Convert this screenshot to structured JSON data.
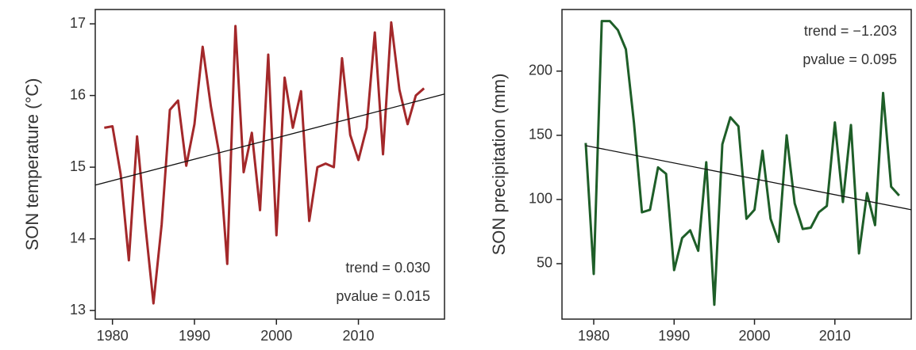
{
  "chart_data": [
    {
      "type": "line",
      "ylabel": "SON temperature (°C)",
      "annotations": [
        "trend = 0.030",
        "pvalue = 0.015"
      ],
      "annotation_corner": "bottom-right",
      "x": [
        1979,
        1980,
        1981,
        1982,
        1983,
        1984,
        1985,
        1986,
        1987,
        1988,
        1989,
        1990,
        1991,
        1992,
        1993,
        1994,
        1995,
        1996,
        1997,
        1998,
        1999,
        2000,
        2001,
        2002,
        2003,
        2004,
        2005,
        2006,
        2007,
        2008,
        2009,
        2010,
        2011,
        2012,
        2013,
        2014,
        2015,
        2016,
        2017,
        2018
      ],
      "values": [
        15.55,
        15.57,
        14.9,
        13.7,
        15.43,
        14.2,
        13.1,
        14.2,
        15.8,
        15.93,
        15.02,
        15.6,
        16.68,
        15.85,
        15.2,
        13.65,
        16.97,
        14.93,
        15.48,
        14.4,
        16.57,
        14.05,
        16.25,
        15.55,
        16.06,
        14.25,
        15.0,
        15.05,
        15.0,
        16.52,
        15.45,
        15.1,
        15.55,
        16.88,
        15.18,
        17.02,
        16.08,
        15.6,
        16.0,
        16.1
      ],
      "color": "#a3282a",
      "trend_line": {
        "x": [
          1977.9,
          2020.5
        ],
        "y": [
          14.75,
          16.02
        ]
      },
      "xlim": [
        1977.9,
        2020.5
      ],
      "xticks": [
        1980,
        1990,
        2000,
        2010
      ],
      "ylim": [
        12.88,
        17.2
      ],
      "yticks": [
        13,
        14,
        15,
        16,
        17
      ]
    },
    {
      "type": "line",
      "ylabel": "SON precipitation (mm)",
      "annotations": [
        "trend = −1.203",
        "pvalue = 0.095"
      ],
      "annotation_corner": "top-right",
      "x": [
        1979,
        1980,
        1981,
        1982,
        1983,
        1984,
        1985,
        1986,
        1987,
        1988,
        1989,
        1990,
        1991,
        1992,
        1993,
        1994,
        1995,
        1996,
        1997,
        1998,
        1999,
        2000,
        2001,
        2002,
        2003,
        2004,
        2005,
        2006,
        2007,
        2008,
        2009,
        2010,
        2011,
        2012,
        2013,
        2014,
        2015,
        2016,
        2017,
        2018
      ],
      "values": [
        144,
        42,
        239,
        239,
        232,
        217,
        160,
        90,
        92,
        125,
        120,
        45,
        70,
        76,
        60,
        129,
        18,
        143,
        164,
        157,
        85,
        92,
        138,
        85,
        67,
        150,
        97,
        77,
        78,
        90,
        95,
        160,
        98,
        158,
        58,
        105,
        80,
        183,
        110,
        103
      ],
      "color": "#1e5e28",
      "trend_line": {
        "x": [
          1979,
          2019.5
        ],
        "y": [
          142,
          92
        ]
      },
      "xlim": [
        1976.05,
        2019.5
      ],
      "xticks": [
        1980,
        1990,
        2000,
        2010
      ],
      "ylim": [
        6.8,
        248
      ],
      "yticks": [
        50,
        100,
        150,
        200
      ]
    }
  ]
}
